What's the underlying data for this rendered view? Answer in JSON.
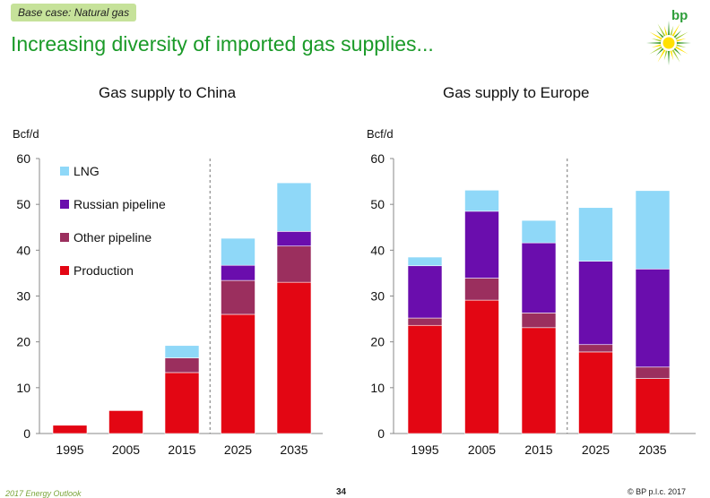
{
  "tag": "Base case: Natural gas",
  "headline": "Increasing diversity of imported gas supplies...",
  "logo": {
    "word": "bp",
    "icon": "helios-icon",
    "colors": [
      "#3c9b2f",
      "#a6ce39",
      "#ffe000"
    ]
  },
  "footer": {
    "left": "2017 Energy Outlook",
    "page": "34",
    "right": "© BP p.l.c. 2017"
  },
  "colors": {
    "Production": "#e30613",
    "Other pipeline": "#9b2f5e",
    "Russian pipeline": "#6a0dad",
    "LNG": "#8fd8f8"
  },
  "chart_data": [
    {
      "type": "bar",
      "stacked": true,
      "title": "Gas supply to China",
      "ylabel": "Bcf/d",
      "ylim": [
        0,
        60
      ],
      "yticks": [
        0,
        10,
        20,
        30,
        40,
        50,
        60
      ],
      "categories": [
        "1995",
        "2005",
        "2015",
        "2025",
        "2035"
      ],
      "projection_divider_after": "2015",
      "legend": {
        "placement": "top-left",
        "order": [
          "LNG",
          "Russian pipeline",
          "Other pipeline",
          "Production"
        ]
      },
      "series": [
        {
          "name": "Production",
          "values": [
            1.8,
            5.0,
            13.3,
            26.0,
            33.0
          ]
        },
        {
          "name": "Other pipeline",
          "values": [
            0,
            0,
            3.2,
            7.4,
            7.9
          ]
        },
        {
          "name": "Russian pipeline",
          "values": [
            0,
            0,
            0,
            3.3,
            3.2
          ]
        },
        {
          "name": "LNG",
          "values": [
            0,
            0,
            2.7,
            5.9,
            10.6
          ]
        }
      ]
    },
    {
      "type": "bar",
      "stacked": true,
      "title": "Gas supply to Europe",
      "ylabel": "Bcf/d",
      "ylim": [
        0,
        60
      ],
      "yticks": [
        0,
        10,
        20,
        30,
        40,
        50,
        60
      ],
      "categories": [
        "1995",
        "2005",
        "2015",
        "2025",
        "2035"
      ],
      "projection_divider_after": "2015",
      "series": [
        {
          "name": "Production",
          "values": [
            23.6,
            29.1,
            23.1,
            17.8,
            12.0
          ]
        },
        {
          "name": "Other pipeline",
          "values": [
            1.6,
            4.8,
            3.2,
            1.6,
            2.5
          ]
        },
        {
          "name": "Russian pipeline",
          "values": [
            11.4,
            14.6,
            15.3,
            18.2,
            21.4
          ]
        },
        {
          "name": "LNG",
          "values": [
            1.9,
            4.6,
            4.9,
            11.7,
            17.1
          ]
        }
      ]
    }
  ]
}
